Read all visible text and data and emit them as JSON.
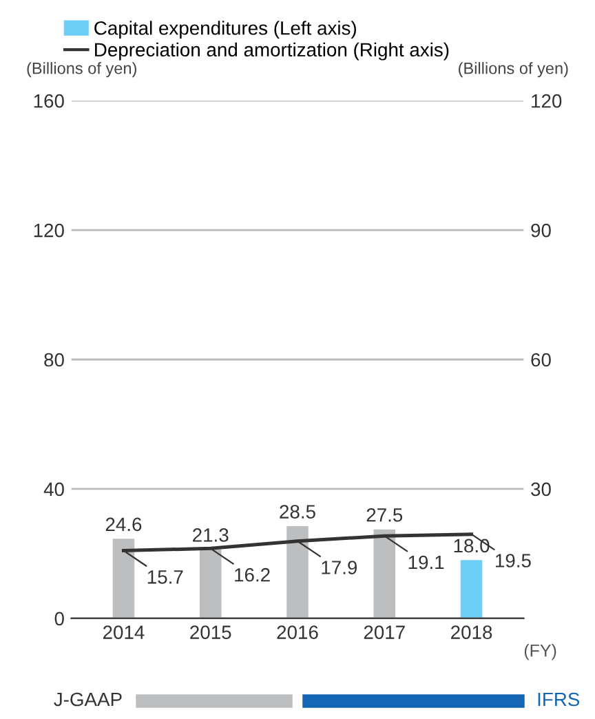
{
  "chart_data": {
    "type": "bar",
    "categories": [
      "2014",
      "2015",
      "2016",
      "2017",
      "2018"
    ],
    "ylabel": "(Billions of yen)",
    "y2label": "(Billions of yen)",
    "ylim": [
      0,
      160
    ],
    "yticks": [
      0,
      40,
      80,
      120,
      160
    ],
    "y2lim": [
      0,
      120
    ],
    "y2ticks": [
      30,
      60,
      90,
      120
    ],
    "grid": "y",
    "legend": "top left",
    "series": [
      {
        "name": "Capital expenditures (Left axis)",
        "color": "#6dcff6",
        "colors": [
          "#bcbec0",
          "#bcbec0",
          "#bcbec0",
          "#bcbec0",
          "#6dcff6"
        ],
        "values": [
          24.6,
          21.3,
          28.5,
          27.5,
          18.0
        ],
        "value_labels": [
          "24.6",
          "21.3",
          "28.5",
          "27.5",
          "18.0"
        ]
      },
      {
        "name": "Depreciation and amortization (Right axis)",
        "type": "line",
        "axis": "y2",
        "color": "#333333",
        "values": [
          15.7,
          16.2,
          17.9,
          19.1,
          19.5
        ],
        "value_labels": [
          "15.7",
          "16.2",
          "17.9",
          "19.1",
          "19.5"
        ]
      }
    ],
    "annotations": [
      "(FY)",
      "J-GAAP",
      "IFRS"
    ]
  }
}
